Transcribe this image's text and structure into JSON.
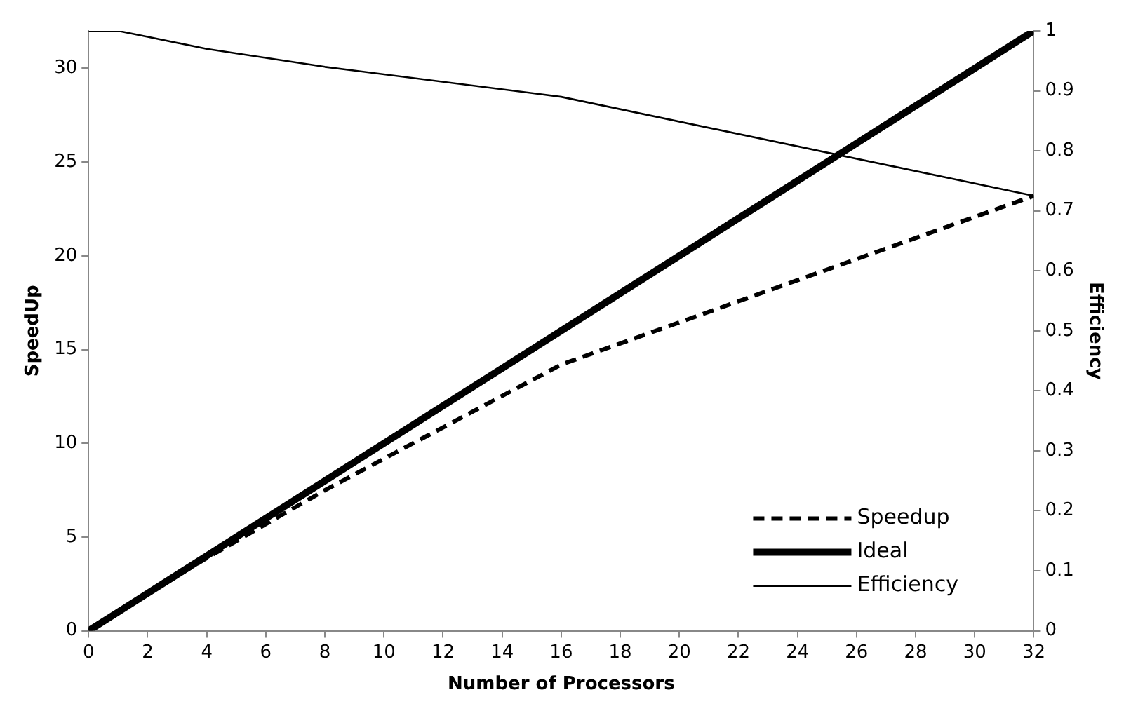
{
  "chart_data": {
    "type": "line",
    "xlabel": "Number of Processors",
    "ylabel": "SpeedUp",
    "y2label": "Efficiency",
    "x": [
      0,
      1,
      2,
      4,
      8,
      16,
      32
    ],
    "series": [
      {
        "name": "Speedup",
        "color": "#000000",
        "values": [
          0,
          1,
          1.98,
          3.88,
          7.5,
          14.2,
          23.2
        ],
        "line_style": "dashed"
      },
      {
        "name": "Ideal",
        "color": "#000000",
        "values": [
          0,
          1,
          2,
          4,
          8,
          16,
          32
        ],
        "line_style": "solid"
      },
      {
        "name": "Efficiency",
        "color": "#000000",
        "values": [
          1,
          1,
          0.99,
          0.97,
          0.94,
          0.89,
          0.725
        ],
        "axis": "y2",
        "line_style": "solid"
      }
    ],
    "xlim": [
      0,
      32
    ],
    "xticks": [
      0,
      2,
      4,
      6,
      8,
      10,
      12,
      14,
      16,
      18,
      20,
      22,
      24,
      26,
      28,
      30,
      32
    ],
    "ylim": [
      0,
      32
    ],
    "yticks": [
      0,
      5,
      10,
      15,
      20,
      25,
      30
    ],
    "y2lim": [
      0,
      1
    ],
    "y2ticks": [
      0,
      0.1,
      0.2,
      0.3,
      0.4,
      0.5,
      0.6,
      0.7,
      0.8,
      0.9,
      1
    ],
    "grid": false,
    "legend": "bottom right",
    "marker": "none"
  }
}
